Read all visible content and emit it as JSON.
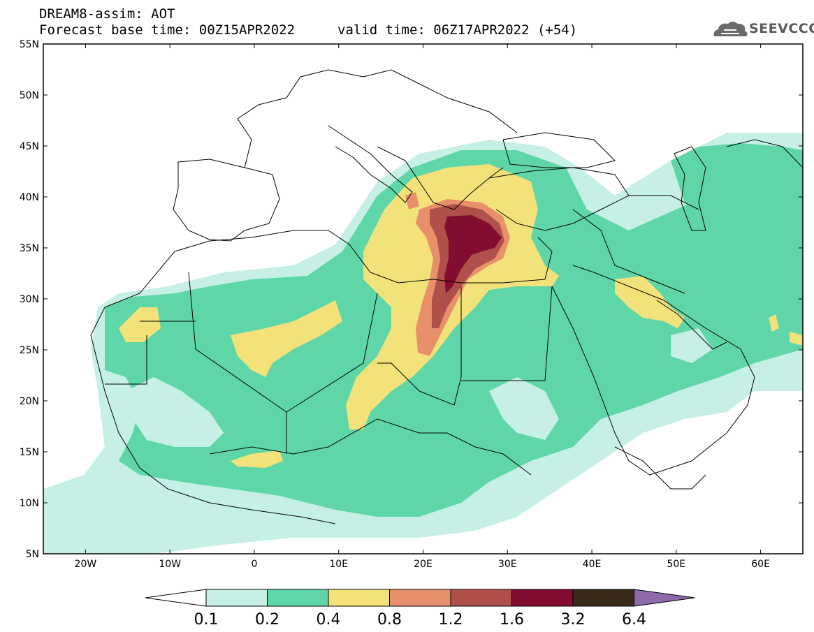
{
  "header": {
    "title_line1": "DREAM8-assim: AOT",
    "title_line2": "Forecast base time: 00Z15APR2022",
    "valid_time": "valid time: 06Z17APR2022 (+54)",
    "logo_text": "SEEVCCC"
  },
  "axes": {
    "lat_labels": [
      "55N",
      "50N",
      "45N",
      "40N",
      "35N",
      "30N",
      "25N",
      "20N",
      "15N",
      "10N",
      "5N"
    ],
    "lon_labels": [
      "20W",
      "10W",
      "0",
      "10E",
      "20E",
      "30E",
      "40E",
      "50E",
      "60E"
    ]
  },
  "colorbar": {
    "levels": [
      "0.1",
      "0.2",
      "0.4",
      "0.8",
      "1.2",
      "1.6",
      "3.2",
      "6.4"
    ],
    "colors": [
      "#ffffff",
      "#c6f0e6",
      "#5fd6a8",
      "#f3e27a",
      "#e8906a",
      "#b0504a",
      "#820d30",
      "#3a2a1a",
      "#8e6aa8"
    ]
  },
  "colors": {
    "background": "#ffffff",
    "c1": "#c6f0e6",
    "c2": "#5fd6a8",
    "c3": "#f3e27a",
    "c4": "#e8906a",
    "c5": "#b0504a",
    "c6": "#820d30",
    "border_line": "#000000"
  }
}
